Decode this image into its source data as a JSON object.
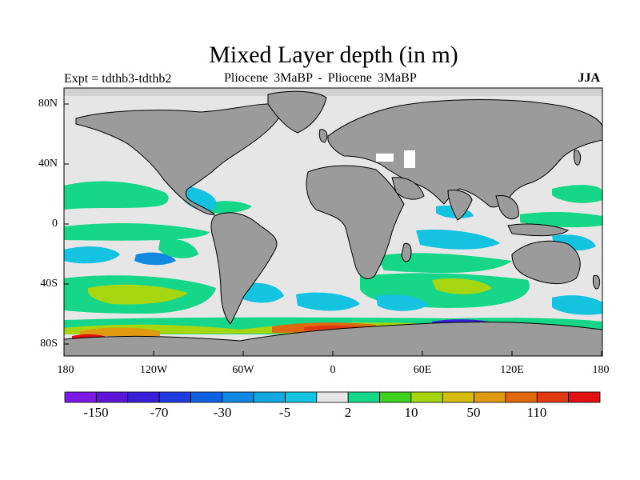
{
  "title": "Mixed Layer depth (in m)",
  "subtitle_left": "Expt = tdthb3-tdthb2",
  "subtitle_center": "Pliocene   3MaBP - Pliocene   3MaBP",
  "subtitle_right": "JJA",
  "latitude_ticks": [
    "80N",
    "40N",
    "0",
    "40S",
    "80S"
  ],
  "longitude_ticks": [
    "180",
    "120W",
    "60W",
    "0",
    "60E",
    "120E",
    "180"
  ],
  "colorbar": {
    "labels": [
      "-150",
      "-70",
      "-30",
      "-5",
      "2",
      "10",
      "50",
      "110"
    ],
    "colors": [
      "#7b1ae6",
      "#5b16d9",
      "#3a1fd8",
      "#1f3ce2",
      "#1060e4",
      "#1388e0",
      "#13a8e0",
      "#13c3e0",
      "#e6e6e6",
      "#16d68a",
      "#3ed11f",
      "#a6d60f",
      "#d6bd0d",
      "#e09a0d",
      "#e0680d",
      "#e03a12",
      "#e01212"
    ]
  },
  "map_colors": {
    "land": "#9b9b9b",
    "ocean_background": "#e6e6e6",
    "near_zero": "#ececec"
  }
}
